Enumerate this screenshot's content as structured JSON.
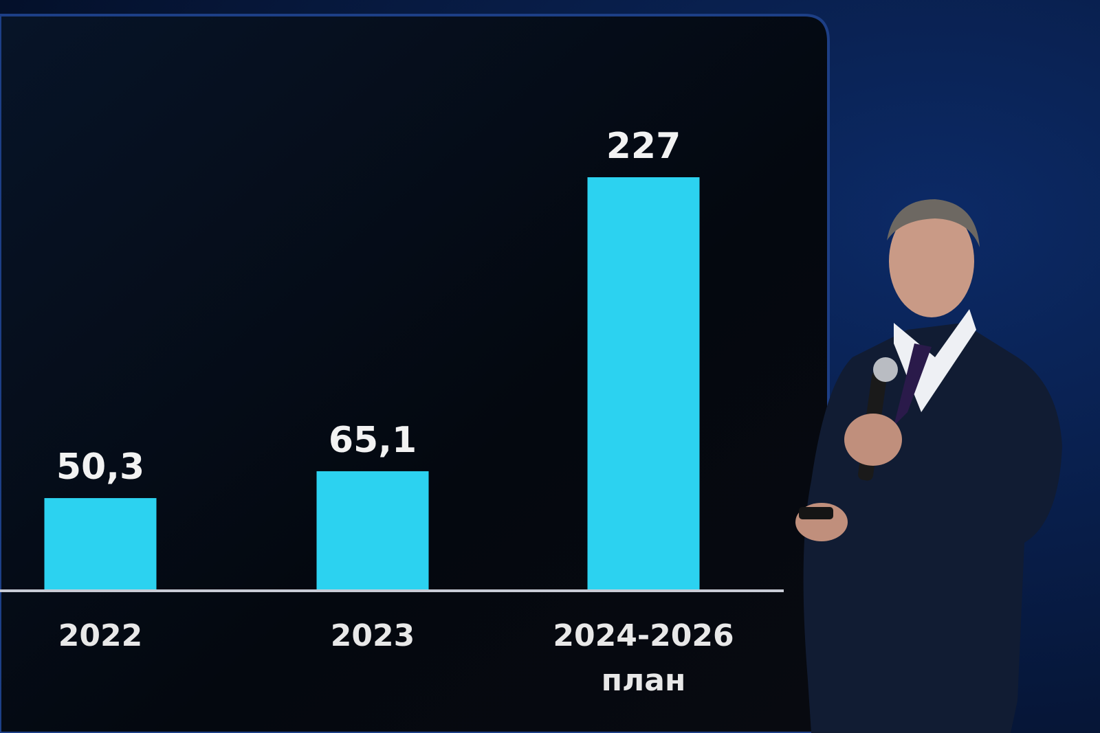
{
  "chart_data": {
    "type": "bar",
    "categories": [
      "2022",
      "2023",
      "2024-2026"
    ],
    "category_sublabels": [
      null,
      null,
      "план"
    ],
    "values": [
      50.3,
      65.1,
      227
    ],
    "value_labels": [
      "50,3",
      "65,1",
      "227"
    ],
    "color": "#2cd2f0"
  }
}
